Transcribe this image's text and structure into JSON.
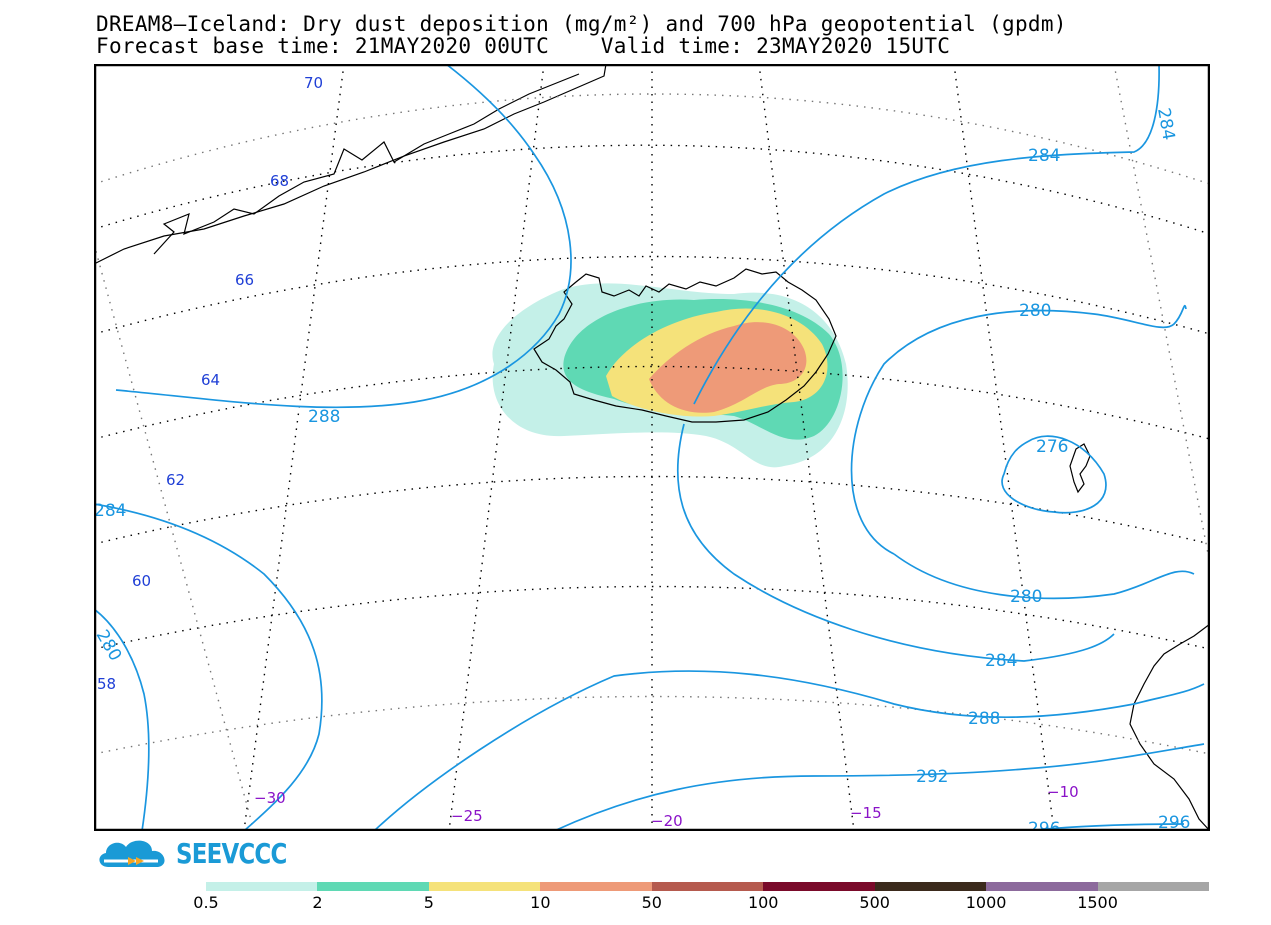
{
  "title": {
    "line1": "DREAM8–Iceland: Dry dust deposition (mg/m²) and 700 hPa geopotential (gpdm)",
    "line2": "Forecast base time: 21MAY2020 00UTC    Valid time: 23MAY2020 15UTC"
  },
  "map": {
    "latitude_labels": [
      "70",
      "68",
      "66",
      "64",
      "62",
      "60",
      "58"
    ],
    "longitude_labels": [
      "−30",
      "−25",
      "−20",
      "−15",
      "−10"
    ],
    "contour_labels": [
      "284",
      "284",
      "280",
      "288",
      "276",
      "284",
      "280",
      "280",
      "284",
      "288",
      "292",
      "296",
      "296"
    ],
    "colors": {
      "contour": "#1a96e0",
      "grid": "#000000",
      "coast": "#000000"
    }
  },
  "logo": {
    "text": "SEEVCCC",
    "icon": "cloud-logo-icon",
    "color": "#1a9ad6"
  },
  "legend": {
    "bins": [
      {
        "label": "0.5",
        "color": "#c4f0e8"
      },
      {
        "label": "2",
        "color": "#5fd9b4"
      },
      {
        "label": "5",
        "color": "#f5e27a"
      },
      {
        "label": "10",
        "color": "#ee9a78"
      },
      {
        "label": "50",
        "color": "#b55a4e"
      },
      {
        "label": "100",
        "color": "#7a0a2a"
      },
      {
        "label": "500",
        "color": "#3b2a1c"
      },
      {
        "label": "1000",
        "color": "#8c6a9c"
      },
      {
        "label": "1500",
        "color": "#a6a6a6"
      }
    ]
  }
}
